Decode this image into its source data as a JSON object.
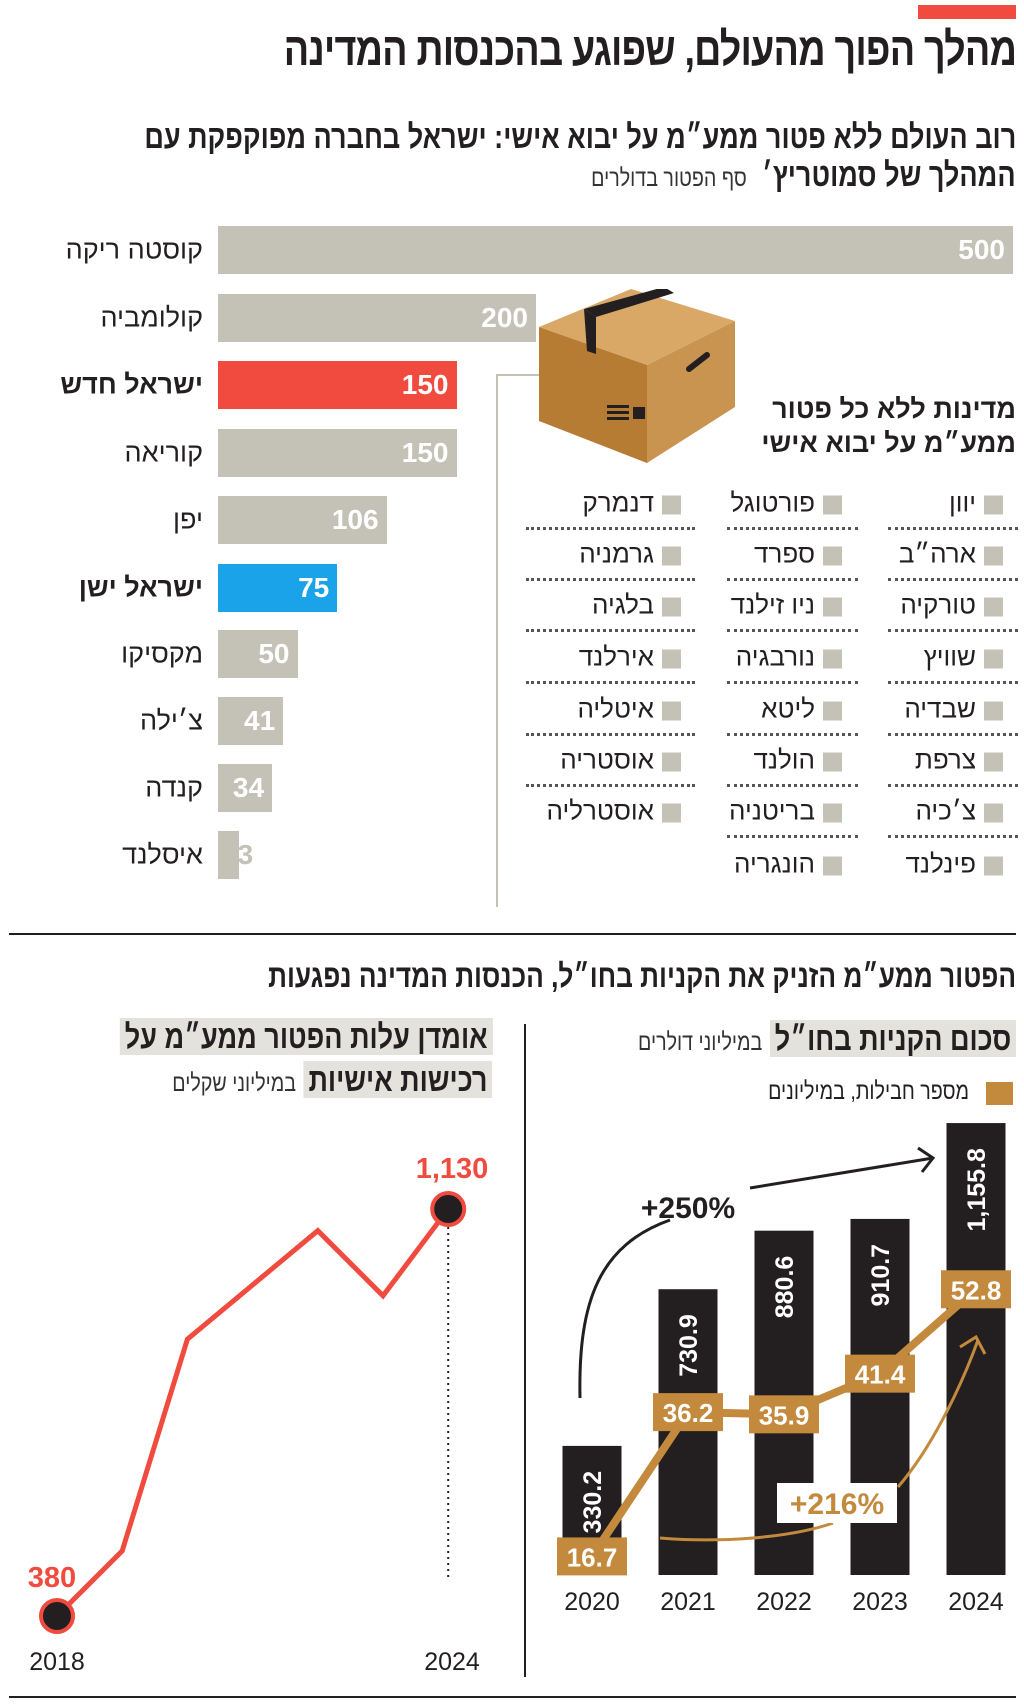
{
  "header": {
    "title": "מהלך הפוך מהעולם, שפוגע בהכנסות המדינה"
  },
  "section1": {
    "title_line1": "רוב העולם ללא פטור ממע״מ על יבוא אישי: ישראל בחברה מפוקפקת עם",
    "title_line2": "המהלך של סמוטריץ׳",
    "unit": "סף הפטור בדולרים"
  },
  "exempt_list": {
    "heading_line1": "מדינות ללא כל פטור",
    "heading_line2": "ממע״מ על יבוא אישי",
    "columns": [
      [
        "יוון",
        "ארה״ב",
        "טורקיה",
        "שוויץ",
        "שבדיה",
        "צרפת",
        "צ׳כיה",
        "פינלנד"
      ],
      [
        "פורטוגל",
        "ספרד",
        "ניו זילנד",
        "נורבגיה",
        "ליטא",
        "הולנד",
        "בריטניה",
        "הונגריה"
      ],
      [
        "דנמרק",
        "גרמניה",
        "בלגיה",
        "אירלנד",
        "איטליה",
        "אוסטריה",
        "אוסטרליה"
      ]
    ],
    "bullet_color": "#c4c1b6"
  },
  "section2": {
    "title": "הפטור ממע״מ הזניק את הקניות בחו״ל, הכנסות המדינה נפגעות"
  },
  "right_panel": {
    "title": "סכום הקניות בחו״ל",
    "unit": "במיליוני דולרים",
    "legend": "מספר חבילות, במיליונים"
  },
  "left_panel": {
    "title_line1": "אומדן עלות הפטור ממע״מ על",
    "title_line2": "רכישות אישיות",
    "unit": "במיליוני שקלים"
  },
  "chart_data": [
    {
      "type": "bar",
      "orientation": "horizontal",
      "title": "רוב העולם ללא פטור ממע״מ על יבוא אישי: ישראל בחברה מפוקפקת עם המהלך של סמוטריץ׳",
      "xlabel": "סף הפטור בדולרים",
      "categories": [
        "קוסטה ריקה",
        "קולומביה",
        "ישראל חדש",
        "קוריאה",
        "יפן",
        "ישראל ישן",
        "מקסיקו",
        "צ׳ילה",
        "קנדה",
        "איסלנד"
      ],
      "values": [
        500,
        200,
        150,
        150,
        106,
        75,
        50,
        41,
        34,
        13
      ],
      "value_labels": [
        "500",
        "200",
        "150",
        "150",
        "106",
        "75",
        "50",
        "41",
        "34",
        "13"
      ],
      "highlight": [
        false,
        false,
        true,
        false,
        false,
        true,
        false,
        false,
        false,
        false
      ],
      "colors": [
        "#c4c1b6",
        "#c4c1b6",
        "#f04b3e",
        "#c4c1b6",
        "#c4c1b6",
        "#1aa3e8",
        "#c4c1b6",
        "#c4c1b6",
        "#c4c1b6",
        "#c4c1b6"
      ],
      "xlim": [
        0,
        500
      ]
    },
    {
      "type": "bar",
      "title": "סכום הקניות בחו״ל",
      "ylabel": "במיליוני דולרים",
      "categories": [
        "2020",
        "2021",
        "2022",
        "2023",
        "2024"
      ],
      "series": [
        {
          "name": "סכום הקניות בחו״ל",
          "type": "bar",
          "color": "#231f20",
          "values": [
            330.2,
            730.9,
            880.6,
            910.7,
            1155.8
          ],
          "labels": [
            "330.2",
            "730.9",
            "880.6",
            "910.7",
            "1,155.8"
          ]
        },
        {
          "name": "מספר חבילות, במיליונים",
          "type": "line",
          "color": "#c38a3e",
          "values": [
            16.7,
            36.2,
            35.9,
            41.4,
            52.8
          ],
          "labels": [
            "16.7",
            "36.2",
            "35.9",
            "41.4",
            "52.8"
          ]
        }
      ],
      "annotations": [
        "+250%",
        "+216%"
      ]
    },
    {
      "type": "line",
      "title": "אומדן עלות הפטור ממע״מ על רכישות אישיות",
      "ylabel": "במיליוני שקלים",
      "x": [
        2018,
        2019,
        2020,
        2021,
        2022,
        2023,
        2024
      ],
      "y": [
        380,
        500,
        890,
        990,
        1090,
        970,
        1130
      ],
      "color": "#f04b3e",
      "point_labels": {
        "first": "380",
        "last": "1,130"
      },
      "tick_labels": [
        "2018",
        "2024"
      ]
    }
  ]
}
